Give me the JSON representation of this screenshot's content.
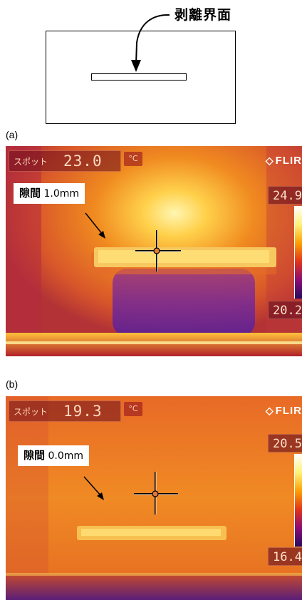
{
  "diagram": {
    "label": "剥離界面"
  },
  "panels": [
    {
      "label": "(a)",
      "spot_label": "スポット",
      "spot_value": "23.0",
      "unit": "°C",
      "brand": "FLIR",
      "brand_mark": "◇",
      "scale_max": "24.9",
      "scale_min": "20.2",
      "gap_label_jp": "隙間",
      "gap_value": "1.0mm"
    },
    {
      "label": "(b)",
      "spot_label": "スポット",
      "spot_value": "19.3",
      "unit": "°C",
      "brand": "FLIR",
      "brand_mark": "◇",
      "scale_max": "20.5",
      "scale_min": "16.4",
      "gap_label_jp": "隙間",
      "gap_value": "0.0mm"
    }
  ],
  "colors": {
    "thermal_hot": "#fff2a0",
    "thermal_warm": "#f28a1c",
    "thermal_mid": "#d9452a",
    "thermal_cool": "#8a1f86",
    "thermal_cold": "#4a1a8a"
  }
}
